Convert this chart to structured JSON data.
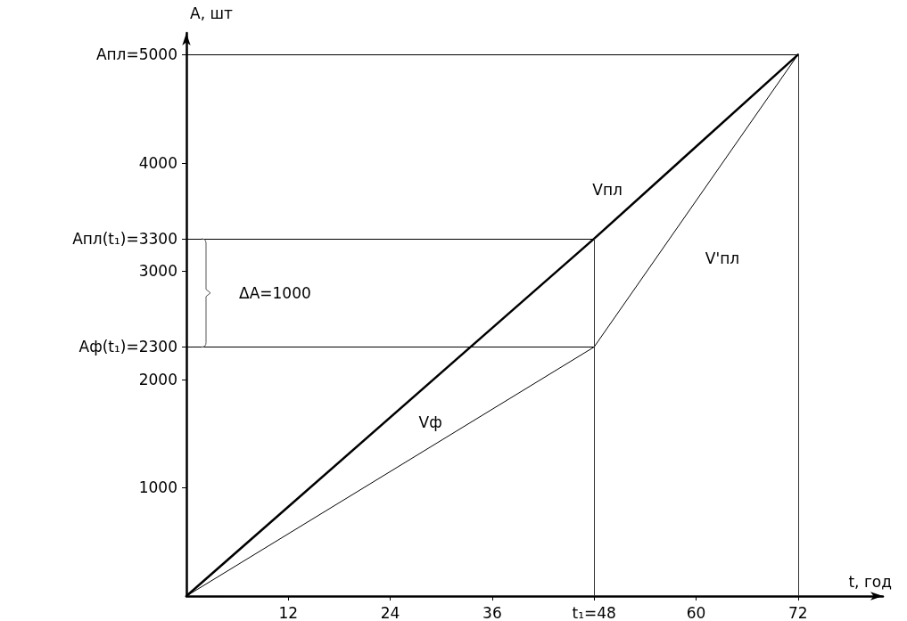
{
  "chart_data": {
    "type": "line",
    "xlabel": "t, год",
    "ylabel": "A, шт",
    "xlim": [
      0,
      82
    ],
    "ylim": [
      0,
      5200
    ],
    "xticks": [
      12,
      24,
      36,
      {
        "value": 48,
        "label": "t₁=48"
      },
      60,
      72
    ],
    "yticks": [
      1000,
      2000,
      {
        "value": 2300,
        "label": "Aф(t₁)=2300"
      },
      3000,
      {
        "value": 3300,
        "label": "Aпл(t₁)=3300"
      },
      4000,
      {
        "value": 5000,
        "label": "Aпл=5000"
      }
    ],
    "series": [
      {
        "name": "Vпл",
        "color": "#000000",
        "x": [
          0,
          48,
          72
        ],
        "values": [
          0,
          3300,
          5000
        ]
      },
      {
        "name": "Vф",
        "color": "#000000",
        "x": [
          0,
          48,
          72
        ],
        "values": [
          0,
          2300,
          5000
        ]
      }
    ],
    "ref_lines": [
      {
        "axis": "y",
        "value": 5000,
        "color": "#000000"
      },
      {
        "axis": "y",
        "value": 3300,
        "color": "#000000"
      },
      {
        "axis": "y",
        "value": 2300,
        "color": "#000000"
      },
      {
        "axis": "x",
        "value": 48,
        "color": "#333333"
      },
      {
        "axis": "x",
        "value": 72,
        "color": "#333333"
      }
    ],
    "annotations": [
      "ΔA=1000",
      "V'пл"
    ],
    "grid": false,
    "legend": false,
    "marker": "none",
    "line_style": "solid"
  }
}
